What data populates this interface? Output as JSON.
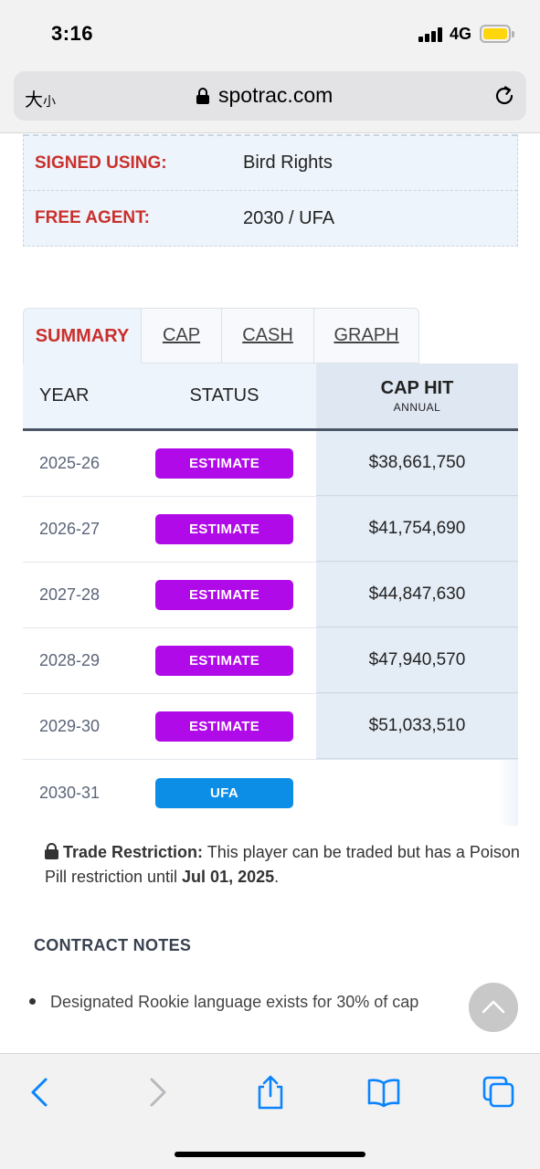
{
  "status_bar": {
    "time": "3:16",
    "network": "4G"
  },
  "browser": {
    "text_size_label": "大",
    "text_size_small": "小",
    "url": "spotrac.com"
  },
  "contract_info": [
    {
      "label": "SIGNED USING:",
      "value": "Bird Rights"
    },
    {
      "label": "FREE AGENT:",
      "value": "2030 / UFA"
    }
  ],
  "tabs": [
    {
      "label": "SUMMARY",
      "active": true
    },
    {
      "label": "CAP",
      "active": false
    },
    {
      "label": "CASH",
      "active": false
    },
    {
      "label": "GRAPH",
      "active": false
    }
  ],
  "table": {
    "headers": {
      "year": "YEAR",
      "status": "STATUS",
      "cap_hit": "CAP HIT",
      "cap_hit_sub": "ANNUAL"
    },
    "rows": [
      {
        "year": "2025-26",
        "status": "ESTIMATE",
        "cap_hit": "$38,661,750"
      },
      {
        "year": "2026-27",
        "status": "ESTIMATE",
        "cap_hit": "$41,754,690"
      },
      {
        "year": "2027-28",
        "status": "ESTIMATE",
        "cap_hit": "$44,847,630"
      },
      {
        "year": "2028-29",
        "status": "ESTIMATE",
        "cap_hit": "$47,940,570"
      },
      {
        "year": "2029-30",
        "status": "ESTIMATE",
        "cap_hit": "$51,033,510"
      },
      {
        "year": "2030-31",
        "status": "UFA",
        "cap_hit": ""
      }
    ]
  },
  "trade_restriction": {
    "label": "Trade Restriction:",
    "text": " This player can be traded but has a Poison Pill restriction until ",
    "date": "Jul 01, 2025",
    "end": "."
  },
  "contract_notes": {
    "title": "CONTRACT NOTES",
    "items": [
      "Designated Rookie language exists for 30% of cap"
    ]
  },
  "colors": {
    "estimate_badge": "#b00ae8",
    "ufa_badge": "#0c8de6",
    "label_red": "#c9302c"
  }
}
